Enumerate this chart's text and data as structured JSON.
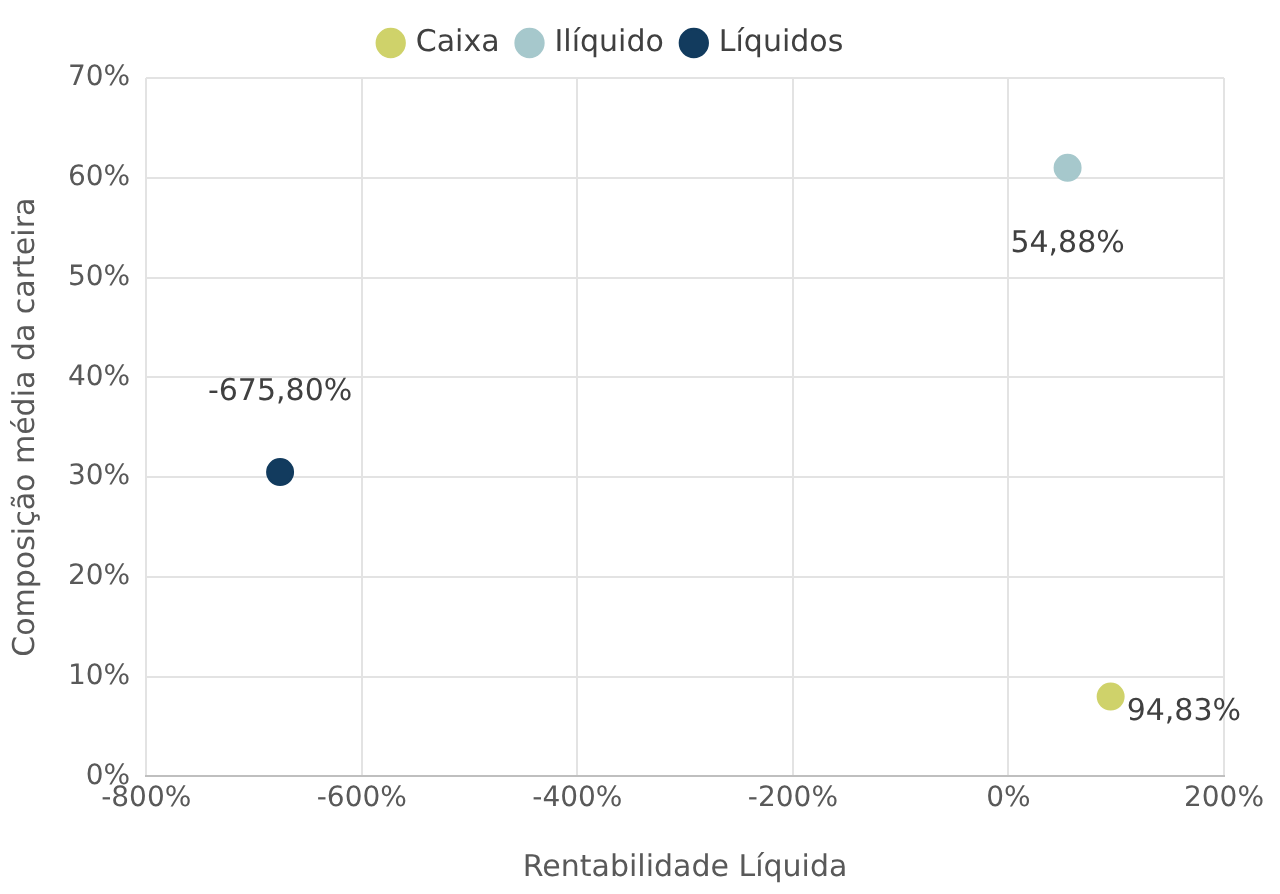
{
  "chart_data": {
    "type": "scatter",
    "xlabel": "Rentabilidade Líquida",
    "ylabel": "Composição média da carteira",
    "series": [
      {
        "name": "Caixa",
        "color": "#cfd26a",
        "x": [
          94.83
        ],
        "values": [
          8
        ]
      },
      {
        "name": "Ilíquido",
        "color": "#a6c8cc",
        "x": [
          54.88
        ],
        "values": [
          61
        ]
      },
      {
        "name": "Líquidos",
        "color": "#123b5e",
        "x": [
          -675.8
        ],
        "values": [
          30.5
        ]
      }
    ],
    "annotations": [
      {
        "text": "94,83%",
        "x": 94.83,
        "y": 8
      },
      {
        "text": "54,88%",
        "x": 54.88,
        "y": 61
      },
      {
        "text": "-675,80%",
        "x": -675.8,
        "y": 30.5
      }
    ],
    "xlim": [
      -800,
      200
    ],
    "xticks": [
      {
        "value": -800,
        "label": "-800%"
      },
      {
        "value": -600,
        "label": "-600%"
      },
      {
        "value": -400,
        "label": "-400%"
      },
      {
        "value": -200,
        "label": "-200%"
      },
      {
        "value": 0,
        "label": "0%"
      },
      {
        "value": 200,
        "label": "200%"
      }
    ],
    "ylim": [
      0,
      70
    ],
    "yticks": [
      {
        "value": 0,
        "label": "0%"
      },
      {
        "value": 10,
        "label": "10%"
      },
      {
        "value": 20,
        "label": "20%"
      },
      {
        "value": 30,
        "label": "30%"
      },
      {
        "value": 40,
        "label": "40%"
      },
      {
        "value": 50,
        "label": "50%"
      },
      {
        "value": 60,
        "label": "60%"
      },
      {
        "value": 70,
        "label": "70%"
      }
    ],
    "grid": true,
    "legend": "top",
    "marker": "circle"
  }
}
